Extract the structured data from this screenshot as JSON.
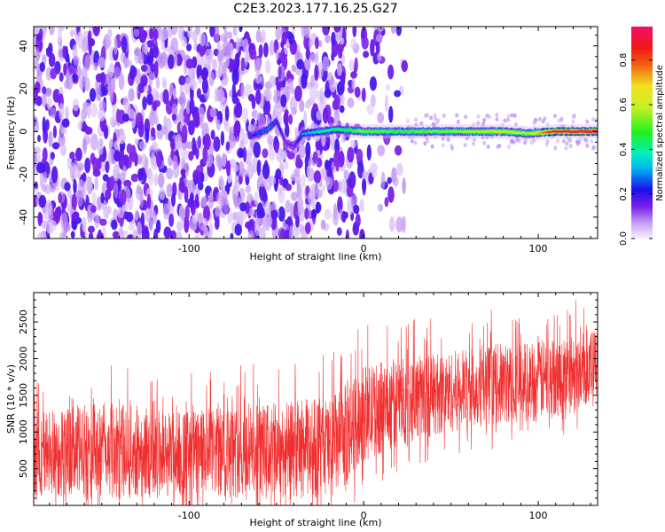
{
  "title": "C2E3.2023.177.16.25.G27",
  "chart_data": [
    {
      "type": "heatmap",
      "xlabel": "Height of straight line (km)",
      "ylabel": "Frequency (Hz)",
      "xlim": [
        -189,
        134
      ],
      "ylim": [
        -50,
        49
      ],
      "x_ticks": [
        -100,
        0,
        100
      ],
      "y_ticks": [
        -40,
        -20,
        0,
        20,
        40
      ],
      "colorbar": {
        "label": "Normalized spectral amplitude",
        "range": [
          0,
          0.95
        ],
        "ticks": [
          0.0,
          0.2,
          0.4,
          0.6,
          0.8
        ]
      },
      "ridge": {
        "description_points": [
          {
            "x": -64,
            "y": -2,
            "amp": 0.2
          },
          {
            "x": -55,
            "y": 1,
            "amp": 0.3
          },
          {
            "x": -50,
            "y": 5,
            "amp": 0.25
          },
          {
            "x": -45,
            "y": -5,
            "amp": 0.15
          },
          {
            "x": -40,
            "y": -7,
            "amp": 0.15
          },
          {
            "x": -35,
            "y": -1,
            "amp": 0.3
          },
          {
            "x": -25,
            "y": 0,
            "amp": 0.4
          },
          {
            "x": -15,
            "y": 1,
            "amp": 0.45
          },
          {
            "x": 0,
            "y": 0,
            "amp": 0.55
          },
          {
            "x": 20,
            "y": 0,
            "amp": 0.5
          },
          {
            "x": 50,
            "y": 0,
            "amp": 0.55
          },
          {
            "x": 80,
            "y": 0,
            "amp": 0.65
          },
          {
            "x": 95,
            "y": -1,
            "amp": 0.6
          },
          {
            "x": 110,
            "y": 0,
            "amp": 0.9
          },
          {
            "x": 134,
            "y": 0,
            "amp": 0.95
          }
        ]
      },
      "noise_region": {
        "x_start": -189,
        "x_end": -20,
        "fade_end": 25
      }
    },
    {
      "type": "line",
      "xlabel": "Height of straight line (km)",
      "ylabel": "SNR (10 * v/v)",
      "xlim": [
        -189,
        134
      ],
      "ylim": [
        0,
        2900
      ],
      "x_ticks": [
        -100,
        0,
        100
      ],
      "y_ticks": [
        500,
        1000,
        1500,
        2000,
        2500
      ],
      "color": "#f03030",
      "series": [
        {
          "x": [
            -189,
            -150,
            -100,
            -50,
            -20,
            -14,
            0,
            25,
            50,
            75,
            100,
            134
          ],
          "y_mean": [
            700,
            750,
            700,
            750,
            800,
            850,
            1250,
            1450,
            1550,
            1650,
            1700,
            1900
          ],
          "y_spread": [
            600,
            650,
            600,
            650,
            700,
            700,
            650,
            600,
            550,
            550,
            550,
            500
          ]
        }
      ]
    }
  ]
}
